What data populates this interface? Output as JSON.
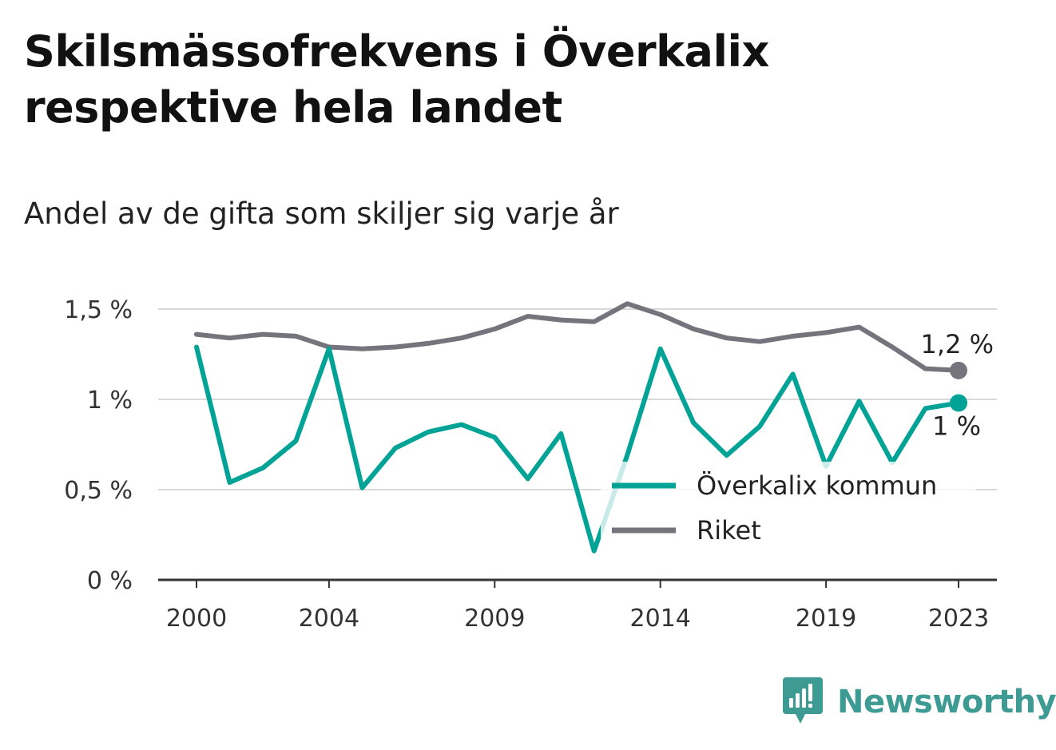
{
  "title": "Skilsmässofrekvens i Överkalix respektive hela landet",
  "subtitle": "Andel av de gifta som skiljer sig varje år",
  "brand": {
    "name": "Newsworthy",
    "color": "#3d9b93"
  },
  "chart_data": {
    "type": "line",
    "x": [
      2000,
      2001,
      2002,
      2003,
      2004,
      2005,
      2006,
      2007,
      2008,
      2009,
      2010,
      2011,
      2012,
      2013,
      2014,
      2015,
      2016,
      2017,
      2018,
      2019,
      2020,
      2021,
      2022,
      2023
    ],
    "x_ticks": [
      2000,
      2004,
      2009,
      2014,
      2019,
      2023
    ],
    "y_ticks": [
      {
        "value": 0,
        "label": "0 %"
      },
      {
        "value": 0.5,
        "label": "0,5 %"
      },
      {
        "value": 1.0,
        "label": "1 %"
      },
      {
        "value": 1.5,
        "label": "1,5 %"
      }
    ],
    "ylim": [
      0,
      1.5
    ],
    "grid": true,
    "legend_position": "bottom-right",
    "series": [
      {
        "name": "Överkalix kommun",
        "color": "#00a395",
        "values": [
          1.29,
          0.54,
          0.62,
          0.77,
          1.28,
          0.51,
          0.73,
          0.82,
          0.86,
          0.79,
          0.56,
          0.81,
          0.16,
          0.69,
          1.28,
          0.87,
          0.69,
          0.85,
          1.14,
          0.63,
          0.99,
          0.65,
          0.95,
          0.98
        ],
        "end_label": "1 %"
      },
      {
        "name": "Riket",
        "color": "#75737b",
        "values": [
          1.36,
          1.34,
          1.36,
          1.35,
          1.29,
          1.28,
          1.29,
          1.31,
          1.34,
          1.39,
          1.46,
          1.44,
          1.43,
          1.53,
          1.47,
          1.39,
          1.34,
          1.32,
          1.35,
          1.37,
          1.4,
          1.29,
          1.17,
          1.16
        ],
        "end_label": "1,2 %"
      }
    ]
  }
}
